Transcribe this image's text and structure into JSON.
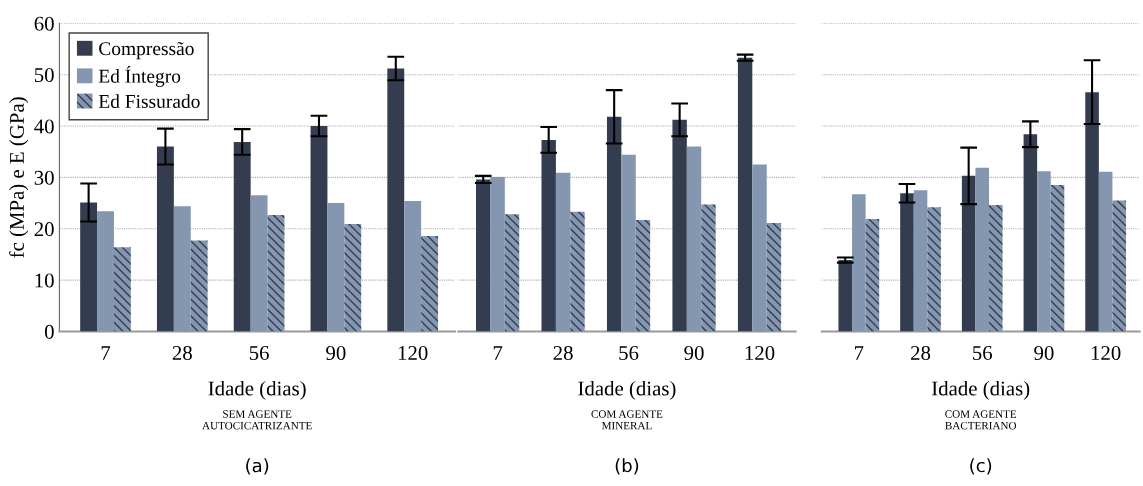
{
  "chart_data": [
    {
      "type": "bar",
      "categories": [
        "7",
        "28",
        "56",
        "90",
        "120"
      ],
      "ylabel": "fc (MPa) e E (GPa)",
      "xlabel": "Idade (dias)",
      "ylim": [
        0,
        60
      ],
      "yticks": [
        0,
        10,
        20,
        30,
        40,
        50,
        60
      ],
      "grid": "y",
      "legend": "top left",
      "annotations": [
        "SEM AGENTE\nAUTOCICATRIZANTE",
        "(a)"
      ],
      "series": [
        {
          "name": "Compressão",
          "color": "#333d4f",
          "values": [
            25.1,
            36.0,
            36.9,
            40.0,
            51.2
          ],
          "errors": [
            3.7,
            3.5,
            2.5,
            2.0,
            2.3
          ]
        },
        {
          "name": "Ed Íntegro",
          "color": "#8496b0",
          "values": [
            23.4,
            24.4,
            26.5,
            25.0,
            25.4
          ]
        },
        {
          "name": "Ed Fissurado",
          "color": "#8496b0",
          "values": [
            16.4,
            17.7,
            22.7,
            20.9,
            18.6
          ]
        }
      ]
    },
    {
      "type": "bar",
      "categories": [
        "7",
        "28",
        "56",
        "90",
        "120"
      ],
      "xlabel": "Idade (dias)",
      "ylim": [
        0,
        60
      ],
      "yticks": [
        0,
        10,
        20,
        30,
        40,
        50,
        60
      ],
      "grid": "y",
      "tick_labels": "x",
      "annotations": [
        "COM AGENTE\nMINERAL",
        "(b)"
      ],
      "series": [
        {
          "color": "#333d4f",
          "values": [
            29.6,
            37.3,
            41.8,
            41.2,
            53.3
          ],
          "errors": [
            0.7,
            2.5,
            5.2,
            3.2,
            0.6
          ]
        },
        {
          "color": "#8496b0",
          "values": [
            30.1,
            30.9,
            34.4,
            36.0,
            32.5
          ]
        },
        {
          "color": "#8496b0",
          "values": [
            22.8,
            23.3,
            21.7,
            24.7,
            21.1
          ]
        }
      ]
    },
    {
      "type": "bar",
      "categories": [
        "7",
        "28",
        "56",
        "90",
        "120"
      ],
      "xlabel": "Idade (dias)",
      "ylim": [
        0,
        60
      ],
      "yticks": [
        0,
        10,
        20,
        30,
        40,
        50,
        60
      ],
      "grid": "y",
      "tick_labels": "x",
      "annotations": [
        "COM AGENTE\nBACTERIANO",
        "(c)"
      ],
      "series": [
        {
          "color": "#333d4f",
          "values": [
            13.9,
            26.9,
            30.3,
            38.4,
            46.6
          ],
          "errors": [
            0.5,
            1.8,
            5.5,
            2.5,
            6.2
          ]
        },
        {
          "color": "#8496b0",
          "values": [
            26.7,
            27.5,
            31.9,
            31.2,
            31.1
          ]
        },
        {
          "color": "#8496b0",
          "values": [
            21.9,
            24.2,
            24.6,
            28.5,
            25.5
          ]
        }
      ]
    }
  ]
}
